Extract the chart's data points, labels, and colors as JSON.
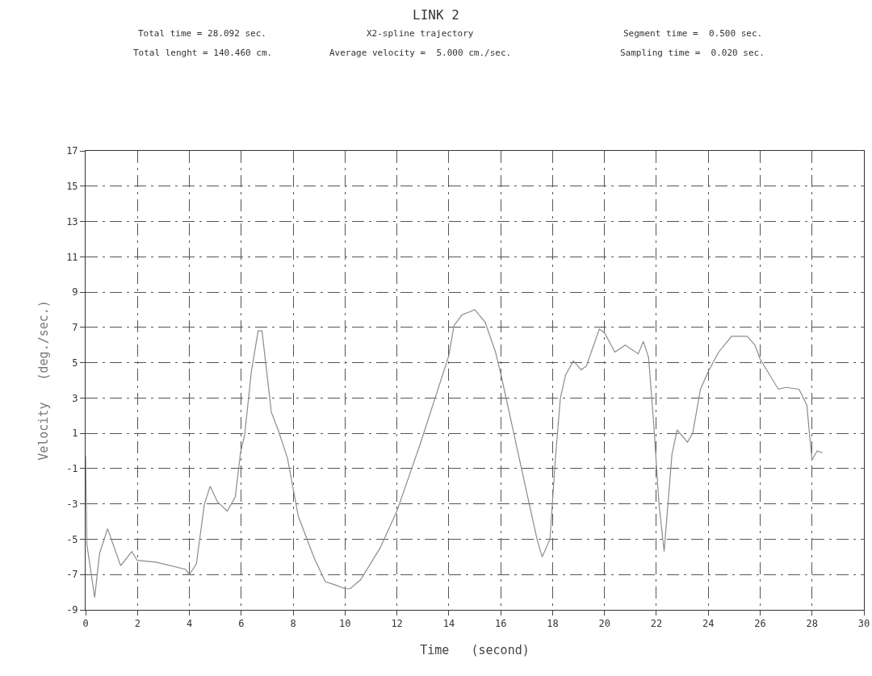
{
  "chart_data": {
    "type": "line",
    "title": "LINK 2",
    "xlabel": "Time   (second)",
    "ylabel": "Velocity   (deg./sec.)",
    "annotations": [
      "Total time = 28.092 sec.",
      "X2-spline trajectory",
      "Segment time =  0.500 sec.",
      "Total lenght = 140.460 cm.",
      "Average velocity =  5.000 cm./sec.",
      "Sampling time =  0.020 sec."
    ],
    "x": [
      0,
      0.05,
      0.35,
      0.54,
      0.85,
      1.35,
      1.78,
      1.99,
      2.71,
      3.85,
      4.0,
      4.27,
      4.58,
      4.8,
      5.09,
      5.46,
      5.77,
      5.97,
      6.13,
      6.39,
      6.65,
      6.8,
      7.16,
      7.42,
      7.78,
      8.2,
      8.82,
      9.24,
      9.65,
      10.0,
      10.2,
      10.6,
      11.35,
      12,
      12.9,
      14,
      14.2,
      14.5,
      15.0,
      15.4,
      15.8,
      16.0,
      16.4,
      17.1,
      17.4,
      17.6,
      17.9,
      18.1,
      18.3,
      18.5,
      18.8,
      19.1,
      19.3,
      19.8,
      20.0,
      20.4,
      20.8,
      21.3,
      21.5,
      21.7,
      21.9,
      22.1,
      22.3,
      22.6,
      22.8,
      23.2,
      23.4,
      23.7,
      24.0,
      24.4,
      24.9,
      25.5,
      25.8,
      26.0,
      26.7,
      27.0,
      27.5,
      27.8,
      27.9,
      28.0,
      28.2,
      28.4
    ],
    "series": [
      {
        "color": "#8c8c8c",
        "values": [
          -0.3,
          -5.3,
          -8.3,
          -5.8,
          -4.4,
          -6.5,
          -5.7,
          -6.2,
          -6.3,
          -6.7,
          -7.0,
          -6.4,
          -3.0,
          -2.0,
          -2.9,
          -3.4,
          -2.6,
          -0.1,
          0.9,
          4.5,
          6.8,
          6.8,
          2.2,
          1.2,
          -0.4,
          -3.7,
          -6.1,
          -7.4,
          -7.6,
          -7.8,
          -7.8,
          -7.3,
          -5.5,
          -3.4,
          0.4,
          5.4,
          7.1,
          7.7,
          8.0,
          7.3,
          5.6,
          4.4,
          1.7,
          -3.0,
          -5.0,
          -6.0,
          -5.0,
          -0.6,
          3.0,
          4.3,
          5.1,
          4.6,
          4.8,
          6.9,
          6.7,
          5.6,
          6.0,
          5.5,
          6.2,
          5.3,
          1.5,
          -3.0,
          -5.7,
          -0.2,
          1.2,
          0.5,
          1.0,
          3.5,
          4.5,
          5.6,
          6.5,
          6.5,
          6.0,
          5.2,
          3.5,
          3.6,
          3.5,
          2.6,
          1.0,
          -0.5,
          0.0,
          -0.1
        ]
      }
    ],
    "xlim": [
      0,
      30
    ],
    "xticks": [
      0,
      2,
      4,
      6,
      8,
      10,
      12,
      14,
      16,
      18,
      20,
      22,
      24,
      26,
      28,
      30
    ],
    "ylim": [
      -9,
      17
    ],
    "yticks": [
      -9,
      -7,
      -5,
      -3,
      -1,
      1,
      3,
      5,
      7,
      9,
      11,
      13,
      15,
      17
    ],
    "grid": true,
    "line_style": "solid",
    "marker": "none"
  }
}
